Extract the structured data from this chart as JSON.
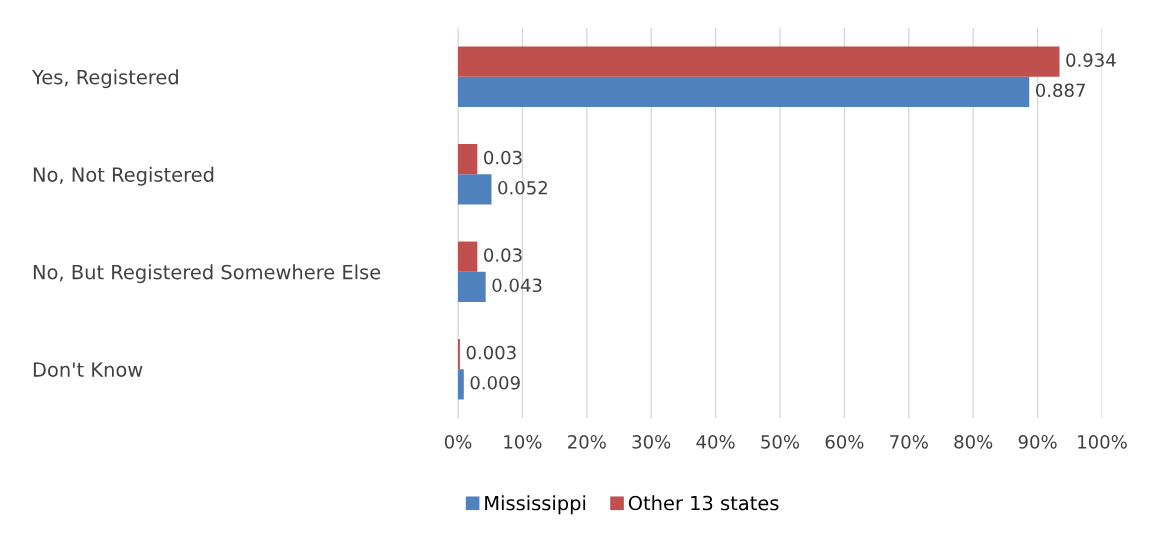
{
  "chart_data": {
    "type": "bar",
    "orientation": "horizontal",
    "categories": [
      "Yes, Registered",
      "No, Not Registered",
      "No, But Registered Somewhere Else",
      "Don't Know"
    ],
    "series": [
      {
        "name": "Mississippi",
        "color": "#4f81bd",
        "values": [
          0.887,
          0.052,
          0.043,
          0.009
        ]
      },
      {
        "name": "Other 13 states",
        "color": "#c0504d",
        "values": [
          0.934,
          0.03,
          0.03,
          0.003
        ]
      }
    ],
    "xlim": [
      0,
      1
    ],
    "xticks": [
      {
        "value": 0,
        "label": "0%"
      },
      {
        "value": 0.1,
        "label": "10%"
      },
      {
        "value": 0.2,
        "label": "20%"
      },
      {
        "value": 0.3,
        "label": "30%"
      },
      {
        "value": 0.4,
        "label": "40%"
      },
      {
        "value": 0.5,
        "label": "50%"
      },
      {
        "value": 0.6,
        "label": "60%"
      },
      {
        "value": 0.7,
        "label": "70%"
      },
      {
        "value": 0.8,
        "label": "80%"
      },
      {
        "value": 0.9,
        "label": "90%"
      },
      {
        "value": 1,
        "label": "100%"
      }
    ],
    "grid": "x",
    "legend": "bottom",
    "data_labels": true
  }
}
